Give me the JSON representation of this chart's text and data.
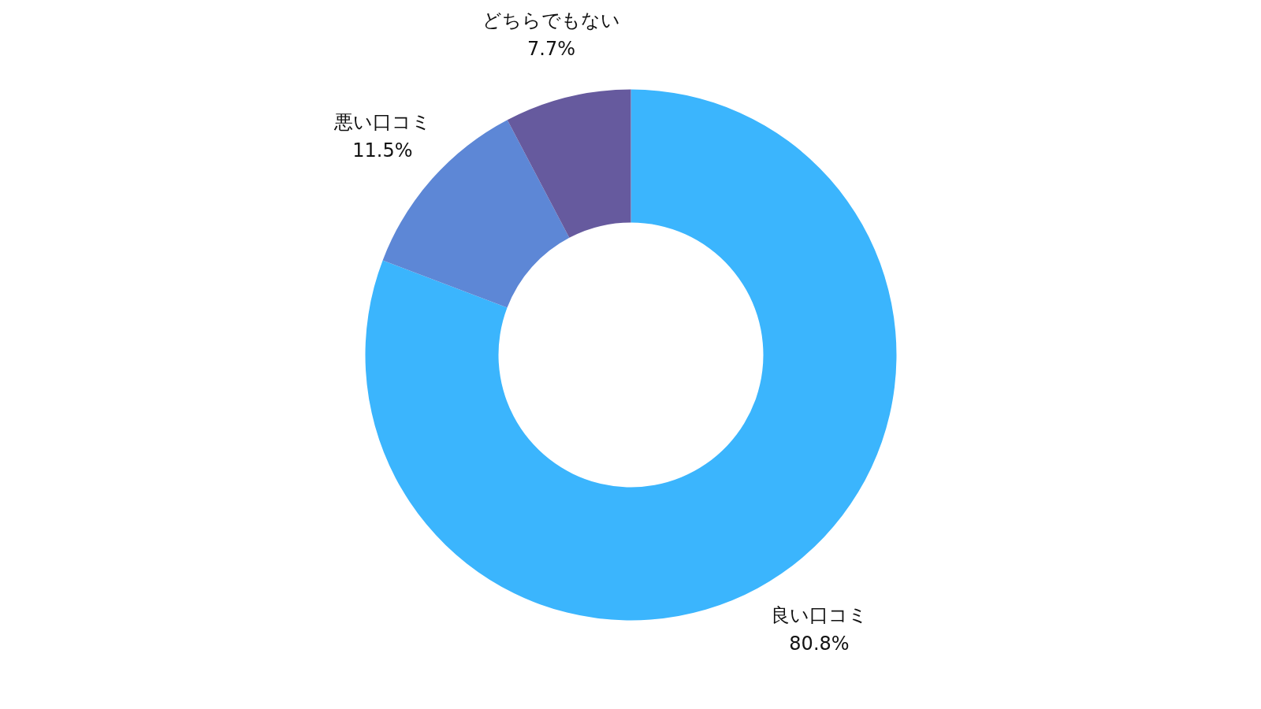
{
  "chart_data": {
    "type": "donut",
    "categories": [
      "良い口コミ",
      "悪い口コミ",
      "どちらでもない"
    ],
    "values": [
      80.8,
      11.5,
      7.7
    ],
    "colors": [
      "#3bb5fd",
      "#5d87d6",
      "#665a9e"
    ],
    "value_labels": [
      "80.8%",
      "11.5%",
      "7.7%"
    ]
  }
}
